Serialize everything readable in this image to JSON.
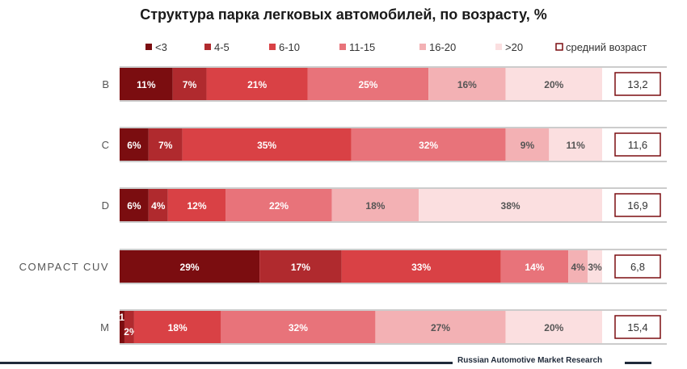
{
  "chart_data": {
    "type": "bar",
    "orientation": "horizontal",
    "stacked": true,
    "title": "Структура парка легковых автомобилей, по возрасту, %",
    "categories": [
      "B",
      "C",
      "D",
      "COMPACT CUV",
      "M"
    ],
    "series": [
      {
        "name": "<3",
        "values": [
          11,
          6,
          6,
          29,
          1
        ],
        "labels": [
          "11%",
          "6%",
          "6%",
          "29%",
          "1%"
        ],
        "color": "#7b0d10"
      },
      {
        "name": "4-5",
        "values": [
          7,
          7,
          4,
          17,
          2
        ],
        "labels": [
          "7%",
          "7%",
          "4%",
          "17%",
          "2%"
        ],
        "color": "#b02a2e"
      },
      {
        "name": "6-10",
        "values": [
          21,
          35,
          12,
          33,
          18
        ],
        "labels": [
          "21%",
          "35%",
          "12%",
          "33%",
          "18%"
        ],
        "color": "#d94145"
      },
      {
        "name": "11-15",
        "values": [
          25,
          32,
          22,
          14,
          32
        ],
        "labels": [
          "25%",
          "32%",
          "22%",
          "14%",
          "32%"
        ],
        "color": "#e8737a"
      },
      {
        "name": "16-20",
        "values": [
          16,
          9,
          18,
          4,
          27
        ],
        "labels": [
          "16%",
          "9%",
          "18%",
          "4%",
          "27%"
        ],
        "color": "#f3b1b4"
      },
      {
        "name": ">20",
        "values": [
          20,
          11,
          38,
          3,
          20
        ],
        "labels": [
          "20%",
          "11%",
          "38%",
          "3%",
          "20%"
        ],
        "color": "#fbdfe0"
      }
    ],
    "average_age": {
      "name": "средний возраст",
      "values": [
        "13,2",
        "11,6",
        "16,9",
        "6,8",
        "15,4"
      ]
    },
    "legend_position": "top",
    "xlim": [
      0,
      100
    ],
    "grid": false
  },
  "footer": {
    "source": "Russian Automotive Market Research"
  }
}
